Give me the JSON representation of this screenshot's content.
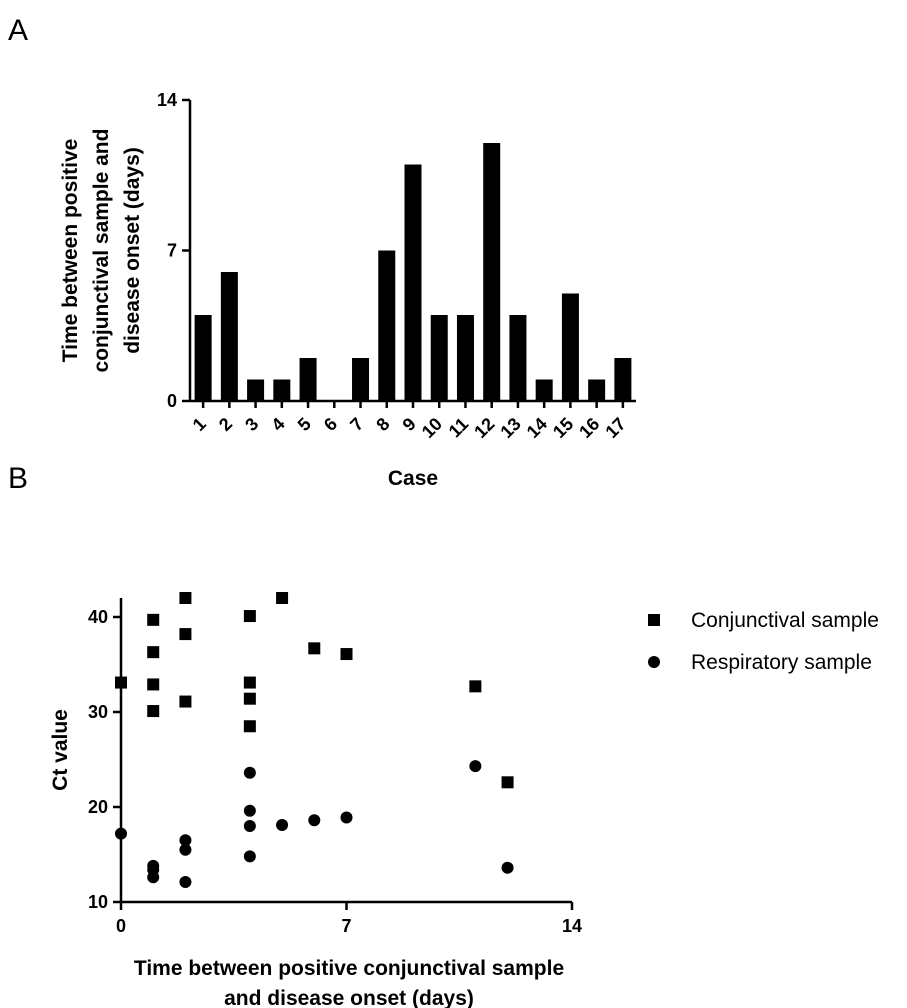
{
  "chart_data": [
    {
      "panel": "A",
      "type": "bar",
      "categories": [
        "1",
        "2",
        "3",
        "4",
        "5",
        "6",
        "7",
        "8",
        "9",
        "10",
        "11",
        "12",
        "13",
        "14",
        "15",
        "16",
        "17"
      ],
      "values": [
        4,
        6,
        1,
        1,
        2,
        0,
        2,
        7,
        11,
        4,
        4,
        12,
        4,
        1,
        5,
        1,
        2
      ],
      "xlabel": "Case",
      "ylabel": [
        "Time between positive",
        "conjunctival sample and",
        "disease onset (days)"
      ],
      "ylim": [
        0,
        14
      ],
      "yticks": [
        0,
        7,
        14
      ],
      "bar_color": "#000000",
      "grid": false
    },
    {
      "panel": "B",
      "type": "scatter",
      "xlabel": [
        "Time between positive conjunctival sample",
        "and disease onset (days)"
      ],
      "ylabel": "Ct value",
      "xlim": [
        0,
        14
      ],
      "ylim": [
        10,
        42
      ],
      "xticks": [
        0,
        7,
        14
      ],
      "yticks": [
        10,
        20,
        30,
        40
      ],
      "legend_position": "right",
      "grid": false,
      "series": [
        {
          "name": "Conjunctival sample",
          "marker": "square",
          "color": "#000000",
          "points": [
            [
              0,
              33.1
            ],
            [
              1,
              39.7
            ],
            [
              1,
              36.3
            ],
            [
              1,
              32.9
            ],
            [
              1,
              30.1
            ],
            [
              2,
              42.0
            ],
            [
              2,
              38.2
            ],
            [
              2,
              31.1
            ],
            [
              4,
              40.1
            ],
            [
              4,
              33.1
            ],
            [
              4,
              31.4
            ],
            [
              4,
              28.5
            ],
            [
              5,
              42.0
            ],
            [
              6,
              36.7
            ],
            [
              7,
              36.1
            ],
            [
              11,
              32.7
            ],
            [
              12,
              22.6
            ]
          ]
        },
        {
          "name": "Respiratory sample",
          "marker": "circle",
          "color": "#000000",
          "points": [
            [
              0,
              17.2
            ],
            [
              1,
              13.8
            ],
            [
              1,
              13.4
            ],
            [
              1,
              12.6
            ],
            [
              2,
              16.5
            ],
            [
              2,
              15.5
            ],
            [
              2,
              12.1
            ],
            [
              4,
              23.6
            ],
            [
              4,
              19.6
            ],
            [
              4,
              18.0
            ],
            [
              4,
              14.8
            ],
            [
              5,
              18.1
            ],
            [
              6,
              18.6
            ],
            [
              7,
              18.9
            ],
            [
              11,
              24.3
            ],
            [
              12,
              13.6
            ]
          ]
        }
      ]
    }
  ]
}
